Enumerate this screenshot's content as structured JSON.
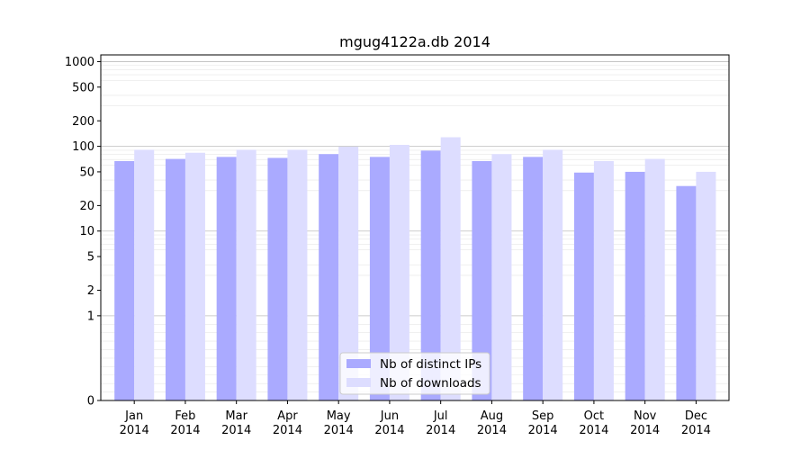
{
  "chart_data": {
    "type": "bar",
    "title": "mgug4122a.db 2014",
    "xlabel": "",
    "ylabel": "",
    "y_scale": "symlog",
    "ylim": [
      0,
      1200
    ],
    "y_ticks": [
      {
        "value": 0,
        "label": "0"
      },
      {
        "value": 1,
        "label": "1"
      },
      {
        "value": 2,
        "label": "2"
      },
      {
        "value": 5,
        "label": "5"
      },
      {
        "value": 10,
        "label": "10"
      },
      {
        "value": 20,
        "label": "20"
      },
      {
        "value": 50,
        "label": "50"
      },
      {
        "value": 100,
        "label": "100"
      },
      {
        "value": 200,
        "label": "200"
      },
      {
        "value": 500,
        "label": "500"
      },
      {
        "value": 1000,
        "label": "1000"
      }
    ],
    "categories": [
      [
        "Jan",
        "2014"
      ],
      [
        "Feb",
        "2014"
      ],
      [
        "Mar",
        "2014"
      ],
      [
        "Apr",
        "2014"
      ],
      [
        "May",
        "2014"
      ],
      [
        "Jun",
        "2014"
      ],
      [
        "Jul",
        "2014"
      ],
      [
        "Aug",
        "2014"
      ],
      [
        "Sep",
        "2014"
      ],
      [
        "Oct",
        "2014"
      ],
      [
        "Nov",
        "2014"
      ],
      [
        "Dec",
        "2014"
      ]
    ],
    "series": [
      {
        "name": "Nb of distinct IPs",
        "color": "#aaaaff",
        "values": [
          67,
          71,
          75,
          73,
          81,
          75,
          89,
          67,
          75,
          49,
          50,
          34
        ]
      },
      {
        "name": "Nb of downloads",
        "color": "#ddddff",
        "values": [
          91,
          84,
          91,
          91,
          99,
          104,
          128,
          81,
          91,
          67,
          71,
          50
        ]
      }
    ],
    "grid": true,
    "legend_position": "bottom-center"
  }
}
